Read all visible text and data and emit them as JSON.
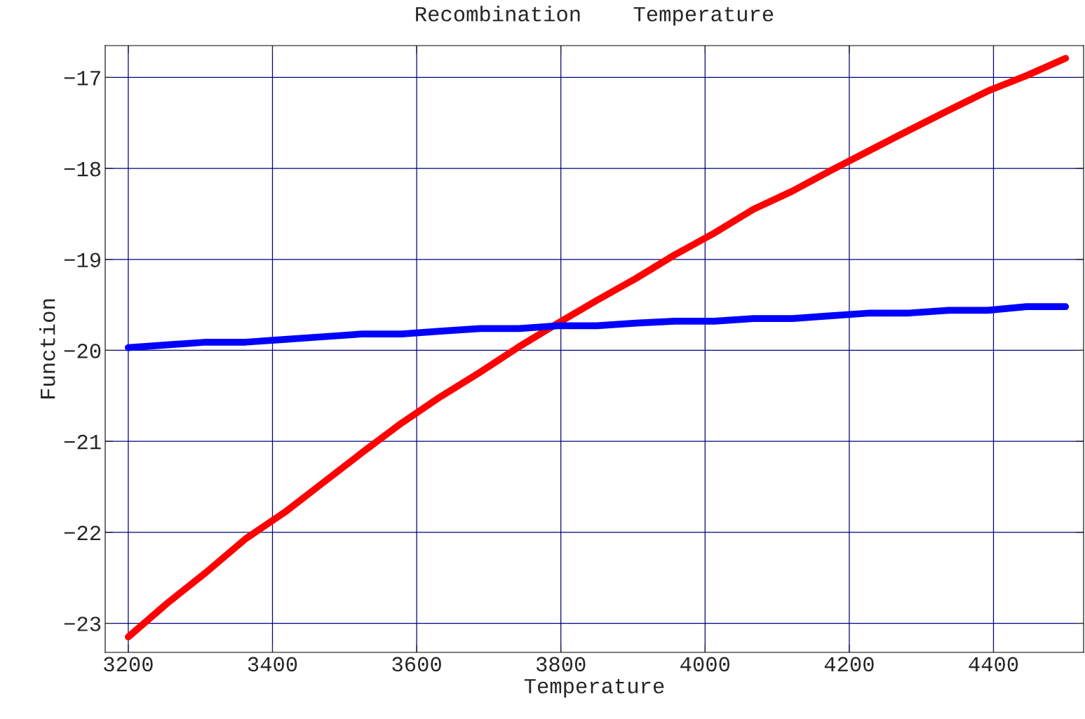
{
  "chart_data": {
    "type": "line",
    "title": "Recombination    Temperature",
    "xlabel": "Temperature",
    "ylabel": "Function",
    "x": [
      3200,
      3254,
      3308,
      3363,
      3417,
      3471,
      3525,
      3579,
      3633,
      3688,
      3742,
      3796,
      3850,
      3904,
      3958,
      4013,
      4067,
      4121,
      4175,
      4229,
      4283,
      4338,
      4392,
      4446,
      4500
    ],
    "series": [
      {
        "color": "#ff0000",
        "values": [
          -23.15,
          -22.78,
          -22.44,
          -22.07,
          -21.78,
          -21.45,
          -21.12,
          -20.8,
          -20.51,
          -20.24,
          -19.96,
          -19.7,
          -19.45,
          -19.21,
          -18.95,
          -18.71,
          -18.45,
          -18.25,
          -18.02,
          -17.8,
          -17.58,
          -17.36,
          -17.15,
          -16.98,
          -16.79
        ]
      },
      {
        "color": "#0000ff",
        "values": [
          -19.97,
          -19.94,
          -19.91,
          -19.91,
          -19.88,
          -19.85,
          -19.82,
          -19.82,
          -19.79,
          -19.76,
          -19.76,
          -19.73,
          -19.73,
          -19.7,
          -19.68,
          -19.68,
          -19.65,
          -19.65,
          -19.62,
          -19.59,
          -19.59,
          -19.56,
          -19.56,
          -19.52,
          -19.52
        ]
      }
    ],
    "xlim": [
      3168,
      4525
    ],
    "ylim": [
      -23.32,
      -16.65
    ],
    "xticks": [
      3200,
      3400,
      3600,
      3800,
      4000,
      4200,
      4400
    ],
    "yticks": [
      {
        "value": -23,
        "label": "−23"
      },
      {
        "value": -22,
        "label": "−22"
      },
      {
        "value": -21,
        "label": "−21"
      },
      {
        "value": -20,
        "label": "−20"
      },
      {
        "value": -19,
        "label": "−19"
      },
      {
        "value": -18,
        "label": "−18"
      },
      {
        "value": -17,
        "label": "−17"
      }
    ],
    "grid": true,
    "line_style": "solid"
  }
}
